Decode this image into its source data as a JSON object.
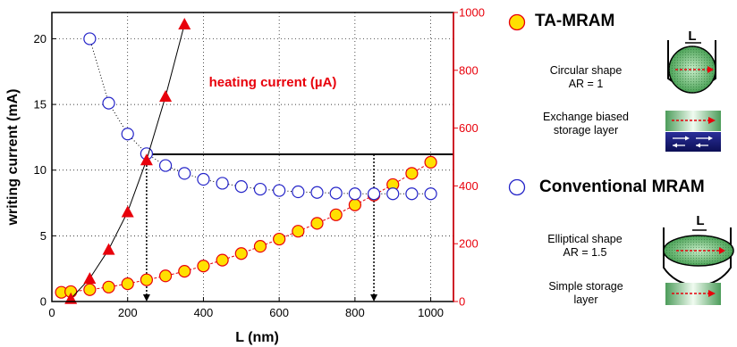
{
  "chart_data": {
    "type": "line",
    "x": {
      "label": "L (nm)",
      "lim": [
        0,
        1060
      ],
      "ticks": [
        0,
        200,
        400,
        600,
        800,
        1000
      ]
    },
    "y_left": {
      "label": "writing current (mA)",
      "lim": [
        0,
        22
      ],
      "ticks": [
        0,
        5,
        10,
        15,
        20
      ]
    },
    "y_right": {
      "lim": [
        0,
        1000
      ],
      "ticks": [
        0,
        200,
        400,
        600,
        800,
        1000
      ],
      "color": "#e8000b"
    },
    "annotation": "heating current (µA)",
    "series": [
      {
        "name": "TA-MRAM",
        "axis": "left",
        "marker": "circle-filled",
        "color": "#ffe000",
        "edge_color": "#e8000b",
        "line_style": "dashed",
        "points": [
          [
            25,
            0.7
          ],
          [
            50,
            0.75
          ],
          [
            100,
            0.9
          ],
          [
            150,
            1.1
          ],
          [
            200,
            1.35
          ],
          [
            250,
            1.65
          ],
          [
            300,
            1.95
          ],
          [
            350,
            2.3
          ],
          [
            400,
            2.7
          ],
          [
            450,
            3.15
          ],
          [
            500,
            3.65
          ],
          [
            550,
            4.2
          ],
          [
            600,
            4.75
          ],
          [
            650,
            5.35
          ],
          [
            700,
            5.95
          ],
          [
            750,
            6.6
          ],
          [
            800,
            7.35
          ],
          [
            850,
            8.1
          ],
          [
            900,
            8.9
          ],
          [
            950,
            9.75
          ],
          [
            1000,
            10.6
          ]
        ]
      },
      {
        "name": "Conventional MRAM",
        "axis": "left",
        "marker": "circle-open",
        "color": "#2323c8",
        "line_style": "dotted",
        "points": [
          [
            100,
            20.0
          ],
          [
            150,
            15.1
          ],
          [
            200,
            12.75
          ],
          [
            250,
            11.25
          ],
          [
            300,
            10.35
          ],
          [
            350,
            9.75
          ],
          [
            400,
            9.3
          ],
          [
            450,
            9.0
          ],
          [
            500,
            8.75
          ],
          [
            550,
            8.55
          ],
          [
            600,
            8.45
          ],
          [
            650,
            8.35
          ],
          [
            700,
            8.3
          ],
          [
            750,
            8.25
          ],
          [
            800,
            8.2
          ],
          [
            850,
            8.2
          ],
          [
            900,
            8.2
          ],
          [
            950,
            8.2
          ],
          [
            1000,
            8.2
          ]
        ]
      },
      {
        "axis": "right",
        "marker": "triangle-filled",
        "color": "#e8000b",
        "line_style": "solid",
        "points": [
          [
            50,
            10
          ],
          [
            100,
            80
          ],
          [
            150,
            180
          ],
          [
            200,
            310
          ],
          [
            250,
            490
          ],
          [
            300,
            710
          ],
          [
            350,
            960
          ]
        ]
      }
    ],
    "reference_lines": {
      "horizontal_y_left": 11.2,
      "horizontal_x_range": [
        250,
        1060
      ],
      "vertical_arrows_x": [
        250,
        850
      ]
    },
    "grid": true
  },
  "legend": {
    "ta_mram": {
      "title": "TA-MRAM",
      "shape_caption": [
        "Circular shape",
        "AR = 1"
      ],
      "layer_caption": [
        "Exchange biased",
        "storage layer"
      ],
      "length_label": "L"
    },
    "conventional": {
      "title": "Conventional MRAM",
      "shape_caption": [
        "Elliptical shape",
        "AR = 1.5"
      ],
      "layer_caption": [
        "Simple storage",
        "layer"
      ],
      "length_label": "L"
    }
  }
}
